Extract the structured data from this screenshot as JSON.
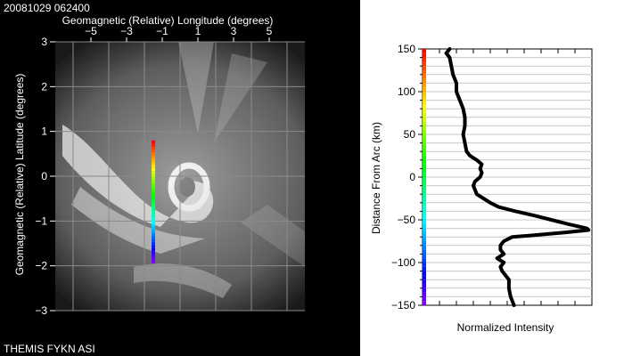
{
  "timestamp": "20081029 062400",
  "footer": "THEMIS FYKN ASI",
  "colors": {
    "background_left": "#000000",
    "grid": "#8a8a8a",
    "aurora": "#ffffff",
    "profile_line": "#000000",
    "panel_bg": "#ffffff"
  },
  "chart_data": [
    {
      "type": "heatmap",
      "title": "",
      "xlabel": "Geomagnetic (Relative) Longitude (degrees)",
      "ylabel": "Geomagnetic (Relative) Latitude (degrees)",
      "xlim": [
        -7,
        7
      ],
      "ylim": [
        -3,
        3
      ],
      "x_ticks": [
        -5,
        -3,
        -1,
        1,
        3,
        5
      ],
      "y_ticks": [
        -3,
        -2,
        -1,
        0,
        1,
        2,
        3
      ],
      "grid": true,
      "overlay_line": {
        "x": -1.5,
        "y_start": 0.8,
        "y_end": -1.95,
        "colormap": "rainbow"
      }
    },
    {
      "type": "line",
      "title": "",
      "xlabel": "Normalized Intensity",
      "ylabel": "Distance From Arc (km)",
      "ylim": [
        -150,
        150
      ],
      "y_ticks": [
        -150,
        -100,
        -50,
        0,
        50,
        100,
        150
      ],
      "xlim": [
        0,
        1
      ],
      "grid": true,
      "series": [
        {
          "y": [
            150,
            145,
            140,
            130,
            120,
            110,
            100,
            90,
            80,
            70,
            60,
            50,
            40,
            30,
            25,
            20,
            15,
            10,
            5,
            0,
            -5,
            -10,
            -15,
            -20,
            -25,
            -30,
            -35,
            -40,
            -45,
            -50,
            -55,
            -60,
            -62,
            -65,
            -68,
            -70,
            -75,
            -80,
            -85,
            -90,
            -95,
            -100,
            -105,
            -110,
            -120,
            -130,
            -140,
            -150
          ],
          "x": [
            0.16,
            0.14,
            0.16,
            0.17,
            0.18,
            0.2,
            0.2,
            0.22,
            0.24,
            0.25,
            0.25,
            0.24,
            0.25,
            0.26,
            0.28,
            0.32,
            0.35,
            0.34,
            0.35,
            0.34,
            0.31,
            0.3,
            0.31,
            0.32,
            0.36,
            0.4,
            0.45,
            0.55,
            0.66,
            0.76,
            0.86,
            0.97,
            0.98,
            0.83,
            0.66,
            0.53,
            0.48,
            0.46,
            0.46,
            0.48,
            0.44,
            0.48,
            0.46,
            0.47,
            0.51,
            0.51,
            0.52,
            0.54
          ]
        }
      ],
      "colorbar": {
        "colormap": "rainbow",
        "range": [
          -150,
          150
        ]
      }
    }
  ]
}
